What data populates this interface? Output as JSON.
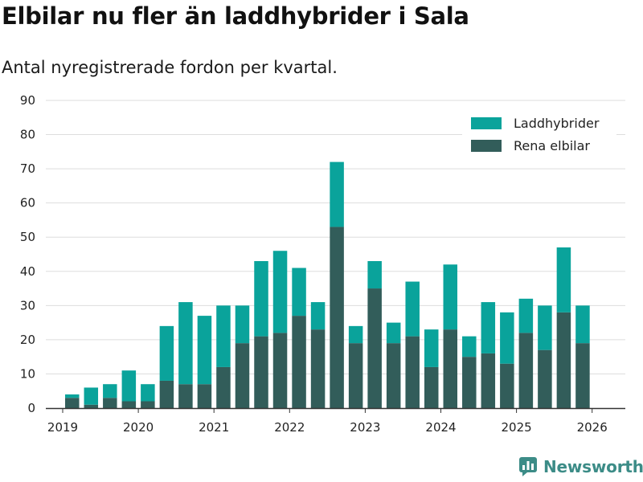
{
  "header": {
    "title": "Elbilar nu fler än laddhybrider i Sala",
    "subtitle": "Antal nyregistrerade fordon per kvartal."
  },
  "brand": {
    "name": "Newsworthy",
    "color": "#3c8c87"
  },
  "chart_data": {
    "type": "bar",
    "stacked": true,
    "title": "Elbilar nu fler än laddhybrider i Sala",
    "subtitle": "Antal nyregistrerade fordon per kvartal.",
    "xlabel": "",
    "ylabel": "",
    "ylim": [
      0,
      90
    ],
    "yticks": [
      0,
      10,
      20,
      30,
      40,
      50,
      60,
      70,
      80,
      90
    ],
    "grid": true,
    "x_ticks": [
      "2019",
      "2020",
      "2021",
      "2022",
      "2023",
      "2024",
      "2025",
      "2026"
    ],
    "categories": [
      "2019 Q1",
      "2019 Q2",
      "2019 Q3",
      "2019 Q4",
      "2020 Q1",
      "2020 Q2",
      "2020 Q3",
      "2020 Q4",
      "2021 Q1",
      "2021 Q2",
      "2021 Q3",
      "2021 Q4",
      "2022 Q1",
      "2022 Q2",
      "2022 Q3",
      "2022 Q4",
      "2023 Q1",
      "2023 Q2",
      "2023 Q3",
      "2023 Q4",
      "2024 Q1",
      "2024 Q2",
      "2024 Q3",
      "2024 Q4",
      "2025 Q1",
      "2025 Q2",
      "2025 Q3",
      "2025 Q4",
      "2026 Q1"
    ],
    "legend_position": "top-right",
    "series": [
      {
        "name": "Rena elbilar",
        "color": "#325d5a",
        "values": [
          3,
          1,
          3,
          2,
          2,
          8,
          7,
          7,
          12,
          19,
          21,
          22,
          27,
          23,
          53,
          19,
          35,
          19,
          21,
          12,
          23,
          15,
          16,
          13,
          22,
          17,
          28,
          19,
          0
        ]
      },
      {
        "name": "Laddhybrider",
        "color": "#0aa39b",
        "values": [
          1,
          5,
          4,
          9,
          5,
          16,
          24,
          20,
          18,
          11,
          22,
          24,
          14,
          8,
          19,
          5,
          8,
          6,
          16,
          11,
          19,
          6,
          15,
          15,
          10,
          13,
          19,
          11,
          0
        ]
      }
    ],
    "legend": [
      "Laddhybrider",
      "Rena elbilar"
    ]
  }
}
